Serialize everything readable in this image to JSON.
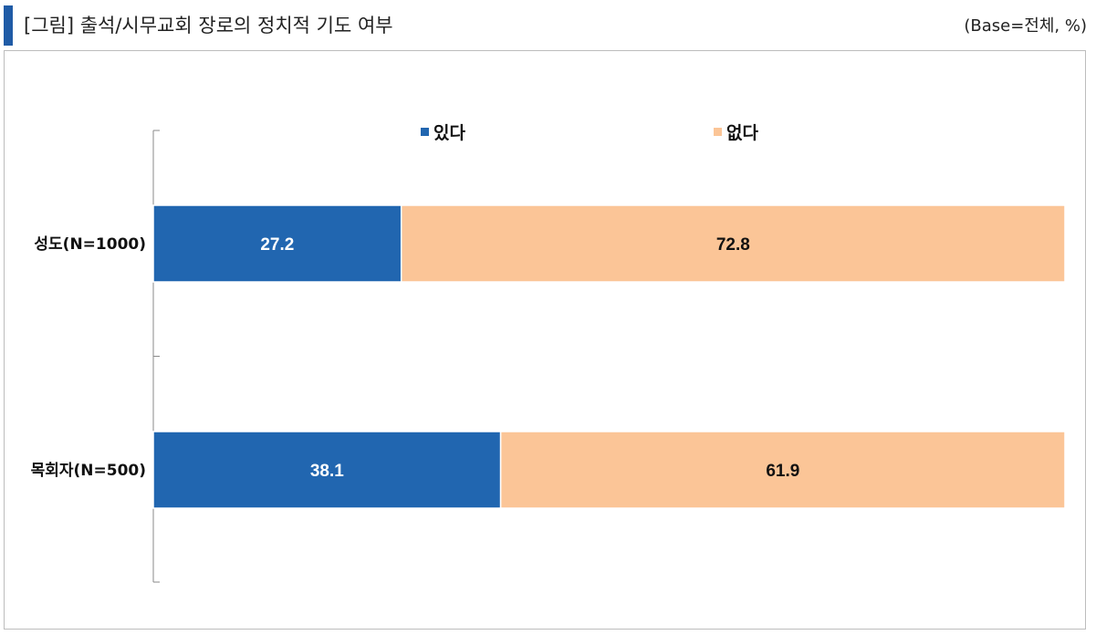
{
  "header": {
    "title": "[그림] 출석/시무교회 장로의 정치적 기도 여부",
    "base_note": "(Base=전체, %)",
    "accent_color": "#1f5ba6"
  },
  "chart_data": {
    "type": "bar",
    "orientation": "horizontal",
    "stacked": true,
    "normalized_percent": true,
    "categories": [
      "성도(N=1000)",
      "목회자(N=500)"
    ],
    "series": [
      {
        "name": "있다",
        "values": [
          27.2,
          38.1
        ],
        "color": "#2166b0",
        "label_color": "#ffffff"
      },
      {
        "name": "없다",
        "values": [
          72.8,
          61.9
        ],
        "color": "#fbc597",
        "label_color": "#111111"
      }
    ],
    "xlim": [
      0,
      100
    ],
    "legend_position": "top-center",
    "grid": false,
    "data_labels": true
  }
}
